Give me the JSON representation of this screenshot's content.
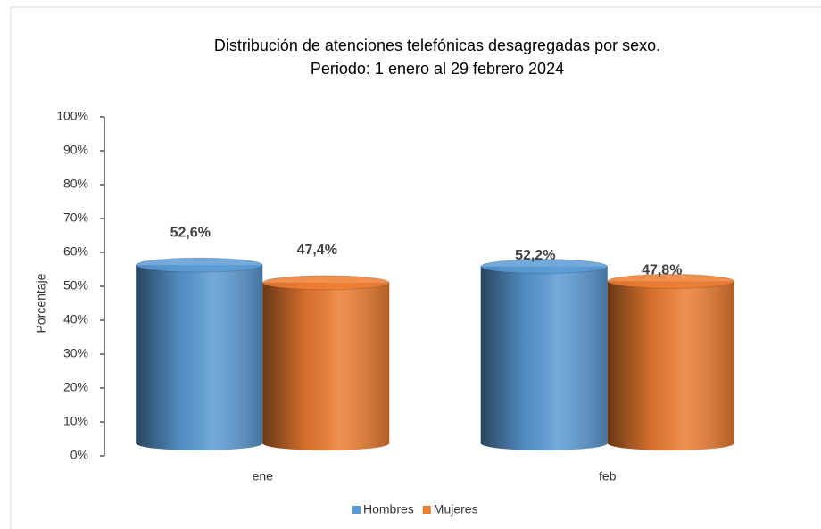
{
  "chart_data": {
    "type": "bar",
    "title": [
      "Distribución de atenciones telefónicas desagregadas por sexo.",
      "Periodo: 1 enero al 29 febrero 2024"
    ],
    "ylabel": "Porcentaje",
    "categories": [
      "ene",
      "feb"
    ],
    "series": [
      {
        "name": "Hombres",
        "color": "#5b9bd5",
        "values": [
          52.6,
          52.2
        ],
        "value_labels": [
          "52,6%",
          "52,2%"
        ]
      },
      {
        "name": "Mujeres",
        "color": "#ed7d31",
        "values": [
          47.4,
          47.8
        ],
        "value_labels": [
          "47,4%",
          "47,8%"
        ]
      }
    ],
    "ylim": [
      0,
      100
    ],
    "yticks": [
      {
        "value": 0,
        "label": "0%"
      },
      {
        "value": 10,
        "label": "10%"
      },
      {
        "value": 20,
        "label": "20%"
      },
      {
        "value": 30,
        "label": "30%"
      },
      {
        "value": 40,
        "label": "40%"
      },
      {
        "value": 50,
        "label": "50%"
      },
      {
        "value": 60,
        "label": "60%"
      },
      {
        "value": 70,
        "label": "70%"
      },
      {
        "value": 80,
        "label": "80%"
      },
      {
        "value": 90,
        "label": "90%"
      },
      {
        "value": 100,
        "label": "100%"
      }
    ],
    "legend": "bottom"
  }
}
